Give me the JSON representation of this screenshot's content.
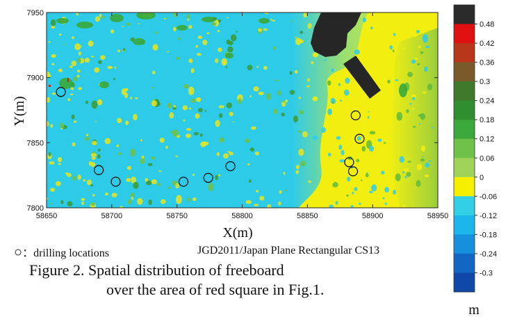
{
  "chart_data": {
    "type": "heatmap",
    "title": "",
    "xlabel": "X(m)",
    "ylabel": "Y(m)",
    "xlim": [
      58650,
      58950
    ],
    "ylim": [
      7800,
      7950
    ],
    "xticks": [
      "58650",
      "58700",
      "58750",
      "58800",
      "58850",
      "58900",
      "58950"
    ],
    "yticks": [
      "7800",
      "7850",
      "7900",
      "7950"
    ],
    "colorbar": {
      "unit": "m",
      "ticks": [
        "0.48",
        "0.42",
        "0.36",
        "0.3",
        "0.24",
        "0.18",
        "0.12",
        "0.06",
        "0",
        "-0.06",
        "-0.12",
        "-0.18",
        "-0.24",
        "-0.3"
      ],
      "colors": [
        "#2a2a2a",
        "#e01010",
        "#b8361a",
        "#7a5a2a",
        "#3f7a2c",
        "#2f8f2f",
        "#3aa83a",
        "#6ec24a",
        "#9fd35a",
        "#f4f000",
        "#33cfe6",
        "#1ab6ec",
        "#1690dd",
        "#1466c4",
        "#1048a8"
      ]
    },
    "drilling_locations": [
      {
        "x": 58661,
        "y": 7889
      },
      {
        "x": 58690,
        "y": 7829
      },
      {
        "x": 58703,
        "y": 7820
      },
      {
        "x": 58755,
        "y": 7820
      },
      {
        "x": 58774,
        "y": 7823
      },
      {
        "x": 58791,
        "y": 7832
      },
      {
        "x": 58882,
        "y": 7835
      },
      {
        "x": 58885,
        "y": 7828
      },
      {
        "x": 58887,
        "y": 7871
      },
      {
        "x": 58890,
        "y": 7853
      }
    ],
    "colors": {
      "ice_background": "#2ecbe8",
      "yellow_zone": "#f2ef10",
      "dark_structure": "#262626",
      "green_patch": "#3aa83a"
    }
  },
  "legend": {
    "marker_symbol": "○",
    "marker_text": "：drilling locations",
    "crs": "JGD2011/Japan Plane Rectangular CS13"
  },
  "caption": {
    "line1": "Figure 2. Spatial distribution of freeboard",
    "line2": "over the area of red square in Fig.1."
  }
}
